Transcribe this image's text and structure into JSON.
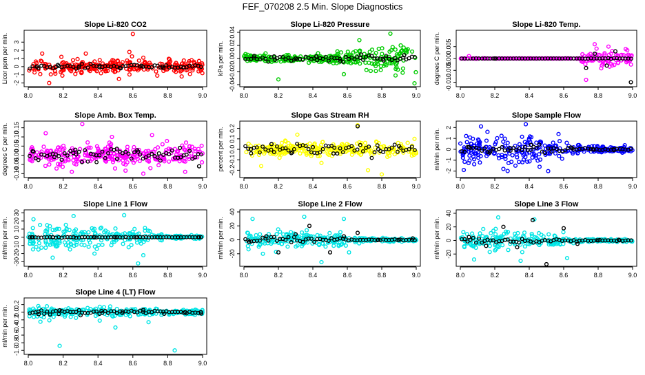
{
  "page_title": "FEF_070208  2.5 Min. Slope Diagnostics",
  "colors": {
    "black": "#000000"
  },
  "chart_data": [
    {
      "type": "scatter",
      "title": "Slope Li-820 CO2",
      "ylabel": "Licor ppm per min.",
      "color": "#ff0000",
      "xlim": [
        8.0,
        9.0
      ],
      "ylim": [
        -2.2,
        4.2
      ],
      "yticks": [
        -2,
        -1,
        0,
        1,
        2,
        3
      ],
      "ytick_labels": [
        "-2",
        "-1",
        "0",
        "1",
        "2",
        "3"
      ],
      "xticks": [
        8.0,
        8.2,
        8.4,
        8.6,
        8.8,
        9.0
      ],
      "xtick_labels": [
        "8.0",
        "8.2",
        "8.4",
        "8.6",
        "8.8",
        "9.0"
      ],
      "spread": 0.6,
      "black_spread": 0.2,
      "spread_profile": [
        1,
        1,
        1,
        1,
        1,
        1,
        1,
        1,
        1,
        1
      ],
      "seed": 11,
      "series": [
        {
          "name": "colored",
          "x": [
            8.03,
            8.08,
            8.12,
            8.19,
            8.27,
            8.33,
            8.41,
            8.52,
            8.58,
            8.6,
            8.66,
            8.74,
            8.81,
            8.88,
            8.95
          ],
          "y": [
            0.3,
            1.6,
            -2.0,
            1.2,
            -0.9,
            1.6,
            0.8,
            -1.5,
            1.8,
            4.0,
            1.1,
            -1.1,
            0.9,
            -1.2,
            0.6
          ]
        },
        {
          "name": "black",
          "x": [
            8.05,
            8.17,
            8.29,
            8.41,
            8.53,
            8.65,
            8.77,
            8.89
          ],
          "y": [
            0.0,
            0.2,
            -0.1,
            0.1,
            -0.2,
            0.1,
            0.0,
            -0.1
          ]
        }
      ]
    },
    {
      "type": "scatter",
      "title": "Slope Li-820 Pressure",
      "ylabel": "kPa per min.",
      "color": "#00cc00",
      "xlim": [
        8.0,
        9.0
      ],
      "ylim": [
        -0.04,
        0.04
      ],
      "yticks": [
        -0.04,
        -0.02,
        0.0,
        0.02,
        0.04
      ],
      "ytick_labels": [
        "-0.04",
        "-0.02",
        "0.00",
        "0.02",
        "0.04"
      ],
      "xticks": [
        8.0,
        8.2,
        8.4,
        8.6,
        8.8,
        9.0
      ],
      "xtick_labels": [
        "8.0",
        "8.2",
        "8.4",
        "8.6",
        "8.8",
        "9.0"
      ],
      "spread": 0.004,
      "black_spread": 0.003,
      "spread_profile": [
        1,
        1,
        1,
        1,
        1,
        1.6,
        2.4,
        3.2,
        3.6,
        3.8
      ],
      "seed": 23,
      "series": [
        {
          "name": "colored",
          "x": [
            8.2,
            8.43,
            8.58,
            8.67,
            8.85,
            8.88,
            8.91,
            8.99
          ],
          "y": [
            -0.032,
            0.008,
            -0.024,
            0.028,
            0.038,
            -0.026,
            0.02,
            -0.038
          ]
        },
        {
          "name": "black",
          "x": [
            8.06,
            8.18,
            8.3,
            8.42,
            8.56,
            8.68,
            8.81,
            8.93
          ],
          "y": [
            0.004,
            -0.002,
            0.0,
            0.003,
            -0.004,
            0.006,
            -0.003,
            0.005
          ]
        }
      ]
    },
    {
      "type": "scatter",
      "title": "Slope Li-820 Temp.",
      "ylabel": "degrees C per min.",
      "color": "#ff00ff",
      "xlim": [
        8.0,
        9.0
      ],
      "ylim": [
        -0.011,
        0.011
      ],
      "yticks": [
        -0.01,
        -0.005,
        0.0,
        0.005
      ],
      "ytick_labels": [
        "-0.010",
        "-0.005",
        "0.000",
        "0.005"
      ],
      "xticks": [
        8.0,
        8.2,
        8.4,
        8.6,
        8.8,
        9.0
      ],
      "xtick_labels": [
        "8.0",
        "8.2",
        "8.4",
        "8.6",
        "8.8",
        "9.0"
      ],
      "spread": 0.0002,
      "black_spread": 0.0001,
      "spread_profile": [
        0.2,
        0.2,
        0.2,
        0.2,
        0.2,
        0.2,
        0.2,
        12,
        12,
        12
      ],
      "seed": 37,
      "series": [
        {
          "name": "colored",
          "x": [
            8.05,
            8.73,
            8.78,
            8.86,
            8.96
          ],
          "y": [
            0.001,
            -0.009,
            0.006,
            0.005,
            0.004
          ]
        },
        {
          "name": "black",
          "x": [
            8.2,
            8.73,
            8.78,
            8.85,
            8.9,
            8.99
          ],
          "y": [
            0.0,
            -0.004,
            0.002,
            -0.003,
            0.003,
            -0.01
          ]
        }
      ]
    },
    {
      "type": "scatter",
      "title": "Slope Amb. Box Temp.",
      "ylabel": "degrees C per min.",
      "color": "#ff00ff",
      "xlim": [
        8.0,
        9.0
      ],
      "ylim": [
        -0.11,
        0.175
      ],
      "yticks": [
        -0.1,
        -0.05,
        0.0,
        0.05,
        0.1,
        0.15
      ],
      "ytick_labels": [
        "-0.10",
        "-0.05",
        "0.00",
        "0.05",
        "0.10",
        "0.15"
      ],
      "xticks": [
        8.0,
        8.2,
        8.4,
        8.6,
        8.8,
        9.0
      ],
      "xtick_labels": [
        "8.0",
        "8.2",
        "8.4",
        "8.6",
        "8.8",
        "9.0"
      ],
      "spread": 0.04,
      "black_spread": 0.025,
      "spread_profile": [
        1,
        1,
        1,
        1,
        1,
        1,
        1,
        1,
        1,
        1
      ],
      "seed": 41,
      "series": [
        {
          "name": "colored",
          "x": [
            8.1,
            8.25,
            8.31,
            8.48,
            8.66,
            8.71,
            8.77,
            8.9
          ],
          "y": [
            0.12,
            -0.09,
            0.17,
            0.1,
            -0.1,
            0.11,
            0.06,
            -0.09
          ]
        },
        {
          "name": "black",
          "x": [
            8.03,
            8.15,
            8.27,
            8.39,
            8.51,
            8.63,
            8.75,
            8.87,
            8.98
          ],
          "y": [
            0.02,
            -0.01,
            0.03,
            0.0,
            -0.02,
            0.02,
            0.01,
            0.04,
            -0.06
          ]
        }
      ]
    },
    {
      "type": "scatter",
      "title": "Slope Gas Stream RH",
      "ylabel": "percent per min.",
      "color": "#ffff00",
      "xlim": [
        8.0,
        9.0
      ],
      "ylim": [
        -0.25,
        0.25
      ],
      "yticks": [
        -0.2,
        -0.1,
        0.0,
        0.1,
        0.2
      ],
      "ytick_labels": [
        "-0.2",
        "-0.1",
        "0.0",
        "0.1",
        "0.2"
      ],
      "xticks": [
        8.0,
        8.2,
        8.4,
        8.6,
        8.8,
        9.0
      ],
      "xtick_labels": [
        "8.0",
        "8.2",
        "8.4",
        "8.6",
        "8.8",
        "9.0"
      ],
      "spread": 0.045,
      "black_spread": 0.04,
      "spread_profile": [
        1,
        1,
        1,
        1,
        1,
        1,
        1,
        1,
        1,
        1
      ],
      "seed": 53,
      "series": [
        {
          "name": "colored",
          "x": [
            8.1,
            8.31,
            8.45,
            8.66,
            8.72,
            8.8,
            8.99
          ],
          "y": [
            -0.16,
            0.14,
            -0.13,
            0.23,
            -0.2,
            -0.24,
            0.1
          ]
        },
        {
          "name": "black",
          "x": [
            8.04,
            8.16,
            8.28,
            8.4,
            8.52,
            8.66,
            8.78,
            8.9
          ],
          "y": [
            0.0,
            0.05,
            -0.03,
            0.02,
            -0.04,
            0.22,
            0.0,
            0.03
          ]
        }
      ]
    },
    {
      "type": "scatter",
      "title": "Slope Sample Flow",
      "ylabel": "ml/min per min.",
      "color": "#0000ff",
      "xlim": [
        8.0,
        9.0
      ],
      "ylim": [
        -2.4,
        2.4
      ],
      "yticks": [
        -2,
        -1,
        0,
        1,
        2
      ],
      "ytick_labels": [
        "-2",
        "-1",
        "0",
        "1",
        "2"
      ],
      "xticks": [
        8.0,
        8.2,
        8.4,
        8.6,
        8.8,
        9.0
      ],
      "xtick_labels": [
        "8.0",
        "8.2",
        "8.4",
        "8.6",
        "8.8",
        "9.0"
      ],
      "spread": 0.8,
      "black_spread": 0.3,
      "spread_profile": [
        1.1,
        1.2,
        1.2,
        1,
        0.9,
        0.7,
        0.5,
        0.3,
        0.25,
        0.25
      ],
      "seed": 67,
      "series": [
        {
          "name": "colored",
          "x": [
            8.02,
            8.12,
            8.25,
            8.32,
            8.38,
            8.46,
            8.51,
            8.57
          ],
          "y": [
            -1.9,
            2.1,
            -1.8,
            -1.5,
            2.3,
            -1.6,
            -2.0,
            1.4
          ]
        },
        {
          "name": "black",
          "x": [
            8.05,
            8.17,
            8.29,
            8.41,
            8.53,
            8.65,
            8.77,
            8.89
          ],
          "y": [
            0.2,
            -0.3,
            0.1,
            0.4,
            -0.2,
            0.1,
            0.0,
            0.0
          ]
        }
      ]
    },
    {
      "type": "scatter",
      "title": "Slope Line 1 Flow",
      "ylabel": "ml/min per min.",
      "color": "#00e5e5",
      "xlim": [
        8.0,
        9.0
      ],
      "ylim": [
        -33,
        31
      ],
      "yticks": [
        -30,
        -20,
        -10,
        0,
        10,
        20,
        30
      ],
      "ytick_labels": [
        "-30",
        "-20",
        "-10",
        "0",
        "10",
        "20",
        "30"
      ],
      "xticks": [
        8.0,
        8.2,
        8.4,
        8.6,
        8.8,
        9.0
      ],
      "xtick_labels": [
        "8.0",
        "8.2",
        "8.4",
        "8.6",
        "8.8",
        "9.0"
      ],
      "spread": 9,
      "black_spread": 0.3,
      "spread_profile": [
        1.2,
        1.2,
        1,
        1,
        1,
        1,
        0.8,
        0.3,
        0.2,
        0.2
      ],
      "seed": 71,
      "series": [
        {
          "name": "colored",
          "x": [
            8.03,
            8.14,
            8.26,
            8.38,
            8.55,
            8.63,
            8.66
          ],
          "y": [
            22,
            -25,
            26,
            -20,
            27,
            -32,
            -22
          ]
        },
        {
          "name": "black",
          "x": [
            8.02,
            8.14,
            8.26,
            8.38,
            8.5,
            8.62,
            8.74,
            8.86,
            8.98
          ],
          "y": [
            0,
            0,
            0,
            0,
            0,
            0,
            0,
            0,
            0
          ]
        }
      ]
    },
    {
      "type": "scatter",
      "title": "Slope Line 2 Flow",
      "ylabel": "ml/min per min.",
      "color": "#00e5e5",
      "xlim": [
        8.0,
        9.0
      ],
      "ylim": [
        -35,
        40
      ],
      "yticks": [
        -20,
        0,
        20,
        40
      ],
      "ytick_labels": [
        "-20",
        "0",
        "20",
        "40"
      ],
      "xticks": [
        8.0,
        8.2,
        8.4,
        8.6,
        8.8,
        9.0
      ],
      "xtick_labels": [
        "8.0",
        "8.2",
        "8.4",
        "8.6",
        "8.8",
        "9.0"
      ],
      "spread": 8,
      "black_spread": 3,
      "spread_profile": [
        1.1,
        1.2,
        1.2,
        1.1,
        1,
        0.8,
        0.35,
        0.2,
        0.2,
        0.2
      ],
      "seed": 79,
      "series": [
        {
          "name": "colored",
          "x": [
            8.05,
            8.11,
            8.35,
            8.45,
            8.58,
            8.61
          ],
          "y": [
            30,
            -20,
            33,
            -32,
            30,
            -18
          ]
        },
        {
          "name": "black",
          "x": [
            8.03,
            8.13,
            8.2,
            8.3,
            8.38,
            8.5,
            8.58,
            8.66,
            8.78,
            8.9,
            8.98
          ],
          "y": [
            -3,
            5,
            -18,
            8,
            20,
            -18,
            5,
            10,
            0,
            0,
            2
          ]
        }
      ]
    },
    {
      "type": "scatter",
      "title": "Slope Line 3 Flow",
      "ylabel": "ml/min per min.",
      "color": "#00e5e5",
      "xlim": [
        8.0,
        9.0
      ],
      "ylim": [
        -35,
        42
      ],
      "yticks": [
        -20,
        0,
        20,
        40
      ],
      "ytick_labels": [
        "-20",
        "0",
        "20",
        "40"
      ],
      "xticks": [
        8.0,
        8.2,
        8.4,
        8.6,
        8.8,
        9.0
      ],
      "xtick_labels": [
        "8.0",
        "8.2",
        "8.4",
        "8.6",
        "8.8",
        "9.0"
      ],
      "spread": 8,
      "black_spread": 3,
      "spread_profile": [
        1.1,
        1.2,
        1.2,
        1.1,
        1,
        0.8,
        0.3,
        0.2,
        0.2,
        0.2
      ],
      "seed": 83,
      "series": [
        {
          "name": "colored",
          "x": [
            8.08,
            8.22,
            8.35,
            8.43,
            8.62
          ],
          "y": [
            -28,
            34,
            -30,
            31,
            -26
          ]
        },
        {
          "name": "black",
          "x": [
            8.05,
            8.15,
            8.25,
            8.33,
            8.42,
            8.5,
            8.6,
            8.68,
            8.8,
            8.92
          ],
          "y": [
            5,
            -8,
            20,
            -10,
            30,
            -35,
            18,
            -5,
            0,
            1
          ]
        }
      ]
    },
    {
      "type": "scatter",
      "title": "Slope Line 4 (LT) Flow",
      "ylabel": "ml/min per min.",
      "color": "#00e5e5",
      "xlim": [
        8.0,
        9.0
      ],
      "ylim": [
        -1.05,
        0.32
      ],
      "yticks": [
        -1.0,
        -0.8,
        -0.6,
        -0.4,
        -0.2,
        0.0,
        0.2
      ],
      "ytick_labels": [
        "-1.0",
        "-0.8",
        "-0.6",
        "-0.4",
        "-0.2",
        "0.0",
        "0.2"
      ],
      "xticks": [
        8.0,
        8.2,
        8.4,
        8.6,
        8.8,
        9.0
      ],
      "xtick_labels": [
        "8.0",
        "8.2",
        "8.4",
        "8.6",
        "8.8",
        "9.0"
      ],
      "spread": 0.08,
      "black_spread": 0.04,
      "spread_profile": [
        1.2,
        1.2,
        1.1,
        1,
        1,
        0.9,
        0.8,
        0.7,
        0.6,
        0.6
      ],
      "seed": 97,
      "series": [
        {
          "name": "colored",
          "x": [
            8.18,
            8.5,
            8.84,
            8.07,
            8.41,
            8.69
          ],
          "y": [
            -0.88,
            -0.4,
            -1.0,
            -0.25,
            -0.22,
            -0.26
          ]
        },
        {
          "name": "black",
          "x": [
            8.06,
            8.18,
            8.3,
            8.42,
            8.54,
            8.66,
            8.78,
            8.9,
            8.99
          ],
          "y": [
            -0.05,
            0.05,
            -0.08,
            0.03,
            -0.02,
            0.06,
            -0.04,
            0.0,
            0.0
          ]
        }
      ]
    }
  ]
}
